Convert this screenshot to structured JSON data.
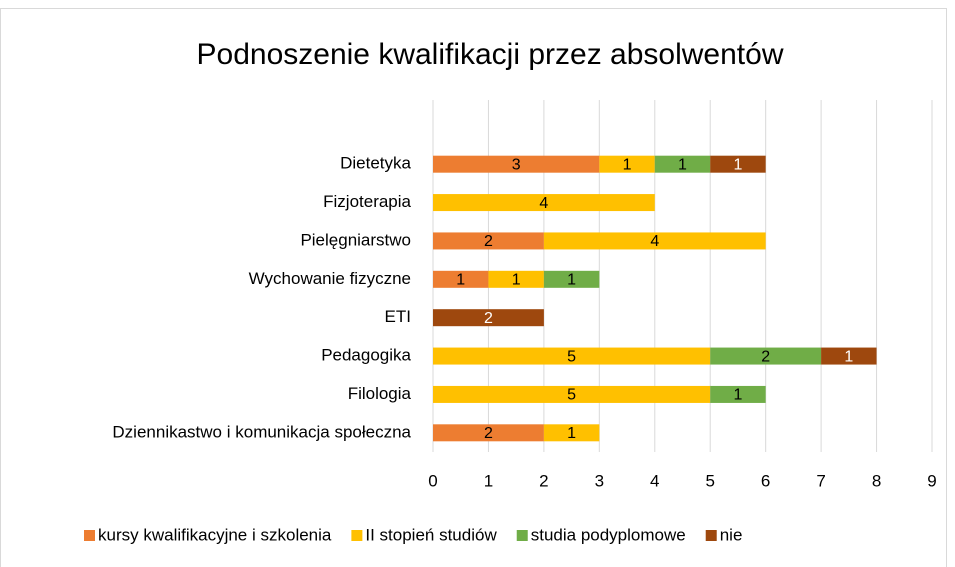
{
  "chart_data": {
    "type": "stacked-bar-horizontal",
    "title": "Podnoszenie kwalifikacji przez absolwentów",
    "categories": [
      "Dietetyka",
      "Fizjoterapia",
      "Pielęgniarstwo",
      "Wychowanie fizyczne",
      "ETI",
      "Pedagogika",
      "Filologia",
      "Dziennikastwo i komunikacja społeczna"
    ],
    "series": [
      {
        "name": "kursy kwalifikacyjne i szkolenia",
        "color": "#ED7D31",
        "label_color": "#000000",
        "values": [
          3,
          null,
          2,
          1,
          null,
          null,
          null,
          2
        ]
      },
      {
        "name": "II stopień studiów",
        "color": "#FFC000",
        "label_color": "#000000",
        "values": [
          1,
          4,
          4,
          1,
          null,
          5,
          5,
          1
        ]
      },
      {
        "name": "studia podyplomowe",
        "color": "#70AD47",
        "label_color": "#000000",
        "values": [
          1,
          null,
          null,
          1,
          null,
          2,
          1,
          null
        ]
      },
      {
        "name": "nie",
        "color": "#9E480E",
        "label_color": "#ffffff",
        "values": [
          1,
          null,
          null,
          null,
          2,
          1,
          null,
          null
        ]
      }
    ],
    "xlim": [
      0,
      9
    ],
    "xticks": [
      0,
      1,
      2,
      3,
      4,
      5,
      6,
      7,
      8,
      9
    ],
    "grid": true,
    "legend": "bottom"
  }
}
